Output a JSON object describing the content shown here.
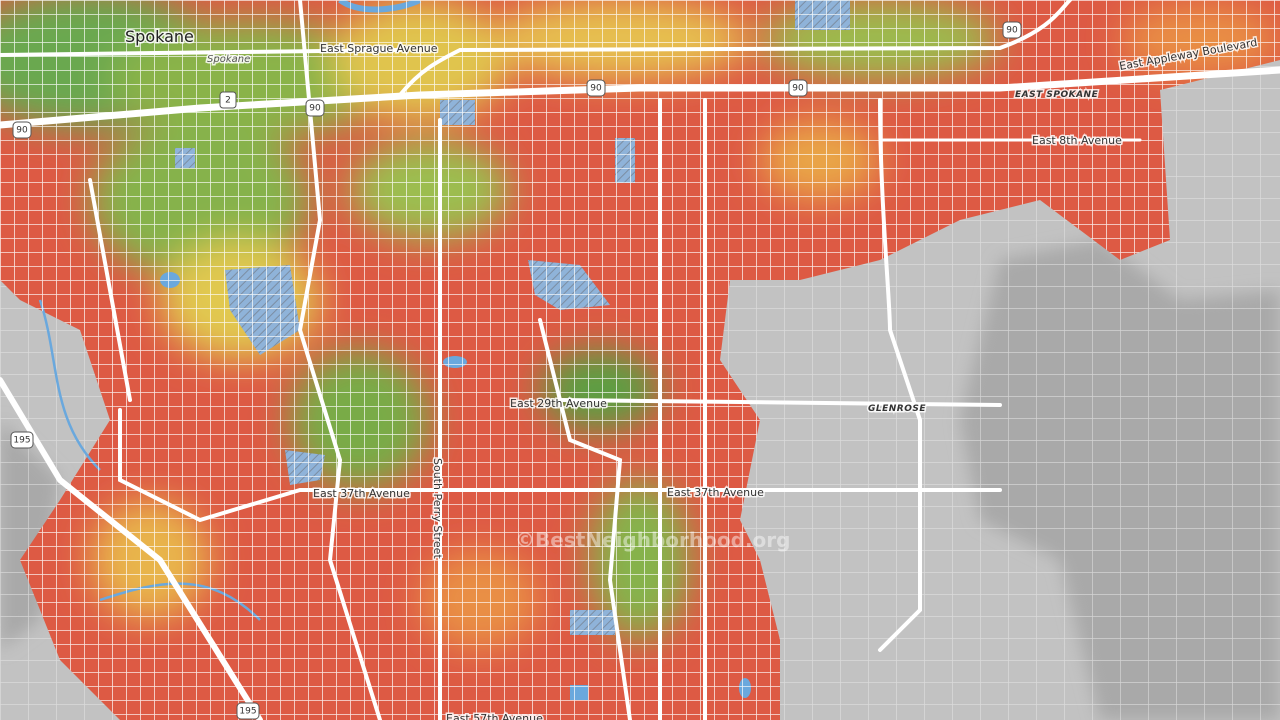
{
  "labels": [
    {
      "text": "Spokane"
    },
    {
      "text": "Spokane"
    },
    {
      "text": "East Sprague Avenue"
    },
    {
      "text": "EAST SPOKANE"
    },
    {
      "text": "East Appleway Boulevard"
    },
    {
      "text": "East 8th Avenue"
    },
    {
      "text": "East 29th Avenue"
    },
    {
      "text": "GLENROSE"
    },
    {
      "text": "East 37th Avenue"
    },
    {
      "text": "East 37th Avenue"
    },
    {
      "text": "South Perry Street"
    },
    {
      "text": "East 57th Avenue"
    }
  ],
  "shields": [
    {
      "text": "90"
    },
    {
      "text": "90"
    },
    {
      "text": "90"
    },
    {
      "text": "90"
    },
    {
      "text": "90"
    },
    {
      "text": "2"
    },
    {
      "text": "195"
    },
    {
      "text": "195"
    }
  ],
  "watermark": "©BestNeighborhood.org"
}
